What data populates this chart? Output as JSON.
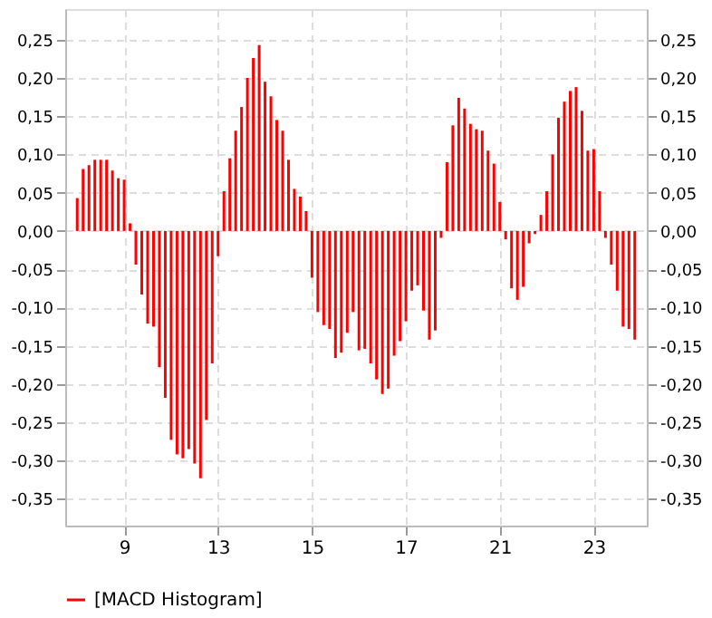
{
  "chart_data": {
    "type": "bar",
    "categories": [
      null,
      null,
      null,
      null,
      null,
      null,
      null,
      null,
      "9",
      null,
      null,
      null,
      null,
      null,
      null,
      null,
      null,
      null,
      null,
      null,
      null,
      null,
      null,
      null,
      "13",
      null,
      null,
      null,
      null,
      null,
      null,
      null,
      null,
      null,
      null,
      null,
      null,
      null,
      null,
      null,
      "15",
      null,
      null,
      null,
      null,
      null,
      null,
      null,
      null,
      null,
      null,
      null,
      null,
      null,
      null,
      null,
      "17",
      null,
      null,
      null,
      null,
      null,
      null,
      null,
      null,
      null,
      null,
      null,
      null,
      null,
      null,
      null,
      "21",
      null,
      null,
      null,
      null,
      null,
      null,
      null,
      null,
      null,
      null,
      null,
      null,
      null,
      null,
      null,
      "23",
      null,
      null,
      null,
      null,
      null,
      null,
      null
    ],
    "series": [
      {
        "name": "[MACD Histogram]",
        "color": "#ff0000",
        "values": [
          0.043,
          0.081,
          0.086,
          0.093,
          0.093,
          0.093,
          0.079,
          0.069,
          0.067,
          0.01,
          -0.044,
          -0.083,
          -0.121,
          -0.125,
          -0.178,
          -0.218,
          -0.273,
          -0.292,
          -0.297,
          -0.285,
          -0.304,
          -0.323,
          -0.247,
          -0.173,
          -0.033,
          0.052,
          0.095,
          0.131,
          0.162,
          0.2,
          0.226,
          0.243,
          0.195,
          0.176,
          0.145,
          0.131,
          0.093,
          0.055,
          0.045,
          0.026,
          -0.061,
          -0.106,
          -0.123,
          -0.128,
          -0.166,
          -0.159,
          -0.133,
          -0.106,
          -0.156,
          -0.154,
          -0.173,
          -0.194,
          -0.213,
          -0.206,
          -0.163,
          -0.144,
          -0.118,
          -0.078,
          -0.071,
          -0.104,
          -0.142,
          -0.13,
          -0.009,
          0.09,
          0.138,
          0.174,
          0.16,
          0.14,
          0.133,
          0.131,
          0.105,
          0.088,
          0.038,
          -0.011,
          -0.075,
          -0.09,
          -0.073,
          -0.016,
          -0.004,
          0.021,
          0.052,
          0.1,
          0.148,
          0.169,
          0.183,
          0.188,
          0.157,
          0.105,
          0.107,
          0.052,
          -0.009,
          -0.044,
          -0.078,
          -0.125,
          -0.128,
          -0.142
        ]
      }
    ],
    "ylim": [
      -0.385,
      0.29
    ],
    "yticks": [
      {
        "value": -0.35,
        "label": "-0,35"
      },
      {
        "value": -0.3,
        "label": "-0,30"
      },
      {
        "value": -0.25,
        "label": "-0,25"
      },
      {
        "value": -0.2,
        "label": "-0,20"
      },
      {
        "value": -0.15,
        "label": "-0,15"
      },
      {
        "value": -0.1,
        "label": "-0,10"
      },
      {
        "value": -0.05,
        "label": "-0,05"
      },
      {
        "value": 0,
        "label": "0,00"
      },
      {
        "value": 0.05,
        "label": "0,05"
      },
      {
        "value": 0.1,
        "label": "0,10"
      },
      {
        "value": 0.15,
        "label": "0,15"
      },
      {
        "value": 0.2,
        "label": "0,20"
      },
      {
        "value": 0.25,
        "label": "0,25"
      }
    ],
    "grid": true,
    "legend": "bottom"
  }
}
